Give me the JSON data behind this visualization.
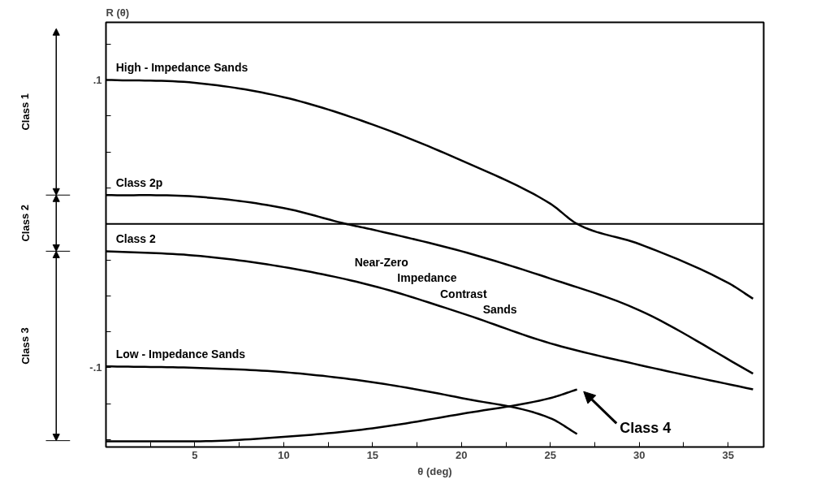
{
  "chart_data": {
    "type": "line",
    "xlabel": "θ (deg)",
    "ylabel": "R (θ)",
    "series": [
      {
        "name": "High - Impedance Sands",
        "color": "#000000",
        "x": [
          0,
          5,
          10,
          15,
          20,
          25,
          26.5,
          30,
          35,
          36.4
        ],
        "values": [
          0.1,
          0.098,
          0.088,
          0.069,
          0.044,
          0.014,
          0,
          -0.014,
          -0.041,
          -0.052
        ]
      },
      {
        "name": "Class 2p",
        "color": "#000000",
        "x": [
          0,
          5,
          10,
          13.5,
          15,
          20,
          25,
          30,
          36.4
        ],
        "values": [
          0.02,
          0.019,
          0.011,
          0,
          -0.004,
          -0.019,
          -0.038,
          -0.06,
          -0.104
        ]
      },
      {
        "name": "Class 2",
        "color": "#000000",
        "x": [
          0,
          5,
          10,
          15,
          20,
          25,
          30,
          36.4
        ],
        "values": [
          -0.019,
          -0.022,
          -0.03,
          -0.043,
          -0.062,
          -0.083,
          -0.098,
          -0.115
        ]
      },
      {
        "name": "Low - Impedance Sands",
        "color": "#000000",
        "x": [
          0,
          5,
          10,
          15,
          20,
          25,
          26.5
        ],
        "values": [
          -0.099,
          -0.1,
          -0.103,
          -0.11,
          -0.121,
          -0.135,
          -0.146
        ]
      },
      {
        "name": "Class 4",
        "color": "#000000",
        "x": [
          0,
          5,
          10,
          15,
          20,
          25,
          26.5
        ],
        "values": [
          -0.151,
          -0.151,
          -0.148,
          -0.142,
          -0.132,
          -0.121,
          -0.115
        ]
      }
    ],
    "xlim": [
      0,
      37
    ],
    "ylim": [
      -0.155,
      0.14
    ],
    "xticks": [
      {
        "value": 2.5,
        "label": null
      },
      5,
      {
        "value": 7.5,
        "label": null
      },
      10,
      {
        "value": 12.5,
        "label": null
      },
      15,
      {
        "value": 17.5,
        "label": null
      },
      20,
      {
        "value": 22.5,
        "label": null
      },
      25,
      {
        "value": 27.5,
        "label": null
      },
      30,
      {
        "value": 32.5,
        "label": null
      },
      35
    ],
    "yticks": [
      {
        "value": -0.15,
        "label": null
      },
      {
        "value": -0.125,
        "label": null
      },
      {
        "value": -0.1,
        "label": "-.1"
      },
      {
        "value": -0.075,
        "label": null
      },
      {
        "value": -0.05,
        "label": null
      },
      {
        "value": -0.025,
        "label": null
      },
      {
        "value": 0.025,
        "label": null
      },
      {
        "value": 0.05,
        "label": null
      },
      {
        "value": 0.075,
        "label": null
      },
      {
        "value": 0.1,
        "label": ".1"
      },
      {
        "value": 0.125,
        "label": null
      }
    ],
    "ref_lines": [
      {
        "axis": "y",
        "value": 0,
        "color": "#000000"
      }
    ],
    "annotations": [
      "Near-Zero Impedance Contrast Sands",
      "Class 1",
      "Class 2",
      "Class 3"
    ],
    "grid": false,
    "marker": "none",
    "line_style": "solid"
  }
}
